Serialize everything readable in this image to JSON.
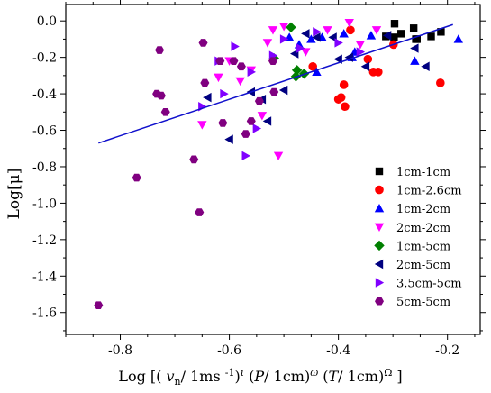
{
  "chart_data": {
    "type": "scatter",
    "title": "",
    "ylabel": "Log[μ]",
    "xlabel": {
      "parts": [
        "Log [( ",
        "v",
        "n",
        "/ 1ms ",
        "-1",
        ")",
        "ι",
        " (",
        "P",
        "/ 1cm)",
        "ω",
        " (",
        "T",
        "/ 1cm)",
        "Ω",
        " ]"
      ]
    },
    "xlim": [
      -0.9,
      -0.14
    ],
    "ylim": [
      -1.72,
      0.09
    ],
    "x_ticks": [
      -0.8,
      -0.6,
      -0.4,
      -0.2
    ],
    "x_tick_labels": [
      "-0.8",
      "-0.6",
      "-0.4",
      "-0.2"
    ],
    "y_ticks": [
      0.0,
      -0.2,
      -0.4,
      -0.6,
      -0.8,
      -1.0,
      -1.2,
      -1.4,
      -1.6
    ],
    "y_tick_labels": [
      "0.0",
      "-0.2",
      "-0.4",
      "-0.6",
      "-0.8",
      "-1.0",
      "-1.2",
      "-1.4",
      "-1.6"
    ],
    "grid": false,
    "legend_position": "bottom-right",
    "fit_line": {
      "x": [
        -0.84,
        -0.19
      ],
      "y": [
        -0.67,
        -0.02
      ],
      "color": "#1010cc"
    },
    "series": [
      {
        "name": "1cm-1cm",
        "marker": "square",
        "color": "#000000",
        "x": [
          -0.297,
          -0.285,
          -0.262,
          -0.298,
          -0.313,
          -0.258,
          -0.23,
          -0.212,
          -0.256
        ],
        "y": [
          -0.015,
          -0.07,
          -0.04,
          -0.09,
          -0.085,
          -0.1,
          -0.085,
          -0.06,
          -0.1
        ]
      },
      {
        "name": "1cm-2.6cm",
        "marker": "circle",
        "color": "#ff0000",
        "x": [
          -0.378,
          -0.346,
          -0.336,
          -0.327,
          -0.299,
          -0.447,
          -0.395,
          -0.39,
          -0.4,
          -0.388,
          -0.213
        ],
        "y": [
          -0.05,
          -0.21,
          -0.28,
          -0.28,
          -0.13,
          -0.25,
          -0.42,
          -0.35,
          -0.43,
          -0.47,
          -0.34
        ]
      },
      {
        "name": "1cm-2cm",
        "marker": "triangle-up",
        "color": "#0000ff",
        "x": [
          -0.49,
          -0.472,
          -0.45,
          -0.43,
          -0.39,
          -0.375,
          -0.34,
          -0.26,
          -0.18,
          -0.44,
          -0.37
        ],
        "y": [
          -0.09,
          -0.13,
          -0.1,
          -0.09,
          -0.07,
          -0.2,
          -0.08,
          -0.22,
          -0.1,
          -0.28,
          -0.17
        ]
      },
      {
        "name": "2cm-2cm",
        "marker": "triangle-down",
        "color": "#ff00ff",
        "x": [
          -0.6,
          -0.58,
          -0.56,
          -0.53,
          -0.5,
          -0.52,
          -0.46,
          -0.42,
          -0.38,
          -0.36,
          -0.33,
          -0.62,
          -0.65,
          -0.51,
          -0.54
        ],
        "y": [
          -0.22,
          -0.33,
          -0.27,
          -0.12,
          -0.03,
          -0.05,
          -0.17,
          -0.05,
          -0.01,
          -0.13,
          -0.05,
          -0.31,
          -0.57,
          -0.74,
          -0.52
        ]
      },
      {
        "name": "1cm-5cm",
        "marker": "diamond",
        "color": "#008000",
        "x": [
          -0.487,
          -0.518,
          -0.476,
          -0.478,
          -0.463
        ],
        "y": [
          -0.035,
          -0.205,
          -0.27,
          -0.305,
          -0.29
        ]
      },
      {
        "name": "2cm-5cm",
        "marker": "triangle-left",
        "color": "#000080",
        "x": [
          -0.64,
          -0.56,
          -0.5,
          -0.48,
          -0.46,
          -0.44,
          -0.4,
          -0.35,
          -0.31,
          -0.26,
          -0.24,
          -0.54,
          -0.53,
          -0.6,
          -0.41,
          -0.38
        ],
        "y": [
          -0.42,
          -0.39,
          -0.38,
          -0.18,
          -0.07,
          -0.09,
          -0.21,
          -0.25,
          -0.08,
          -0.15,
          -0.25,
          -0.43,
          -0.55,
          -0.65,
          -0.09,
          -0.2
        ]
      },
      {
        "name": "3.5cm-5cm",
        "marker": "triangle-right",
        "color": "#8000ff",
        "x": [
          -0.65,
          -0.62,
          -0.59,
          -0.56,
          -0.52,
          -0.5,
          -0.47,
          -0.44,
          -0.4,
          -0.36,
          -0.57,
          -0.61,
          -0.55
        ],
        "y": [
          -0.47,
          -0.22,
          -0.14,
          -0.28,
          -0.19,
          -0.1,
          -0.15,
          -0.06,
          -0.12,
          -0.17,
          -0.74,
          -0.4,
          -0.59
        ]
      },
      {
        "name": "5cm-5cm",
        "marker": "hexagon",
        "color": "#800080",
        "x": [
          -0.84,
          -0.77,
          -0.733,
          -0.725,
          -0.717,
          -0.665,
          -0.655,
          -0.645,
          -0.617,
          -0.592,
          -0.578,
          -0.57,
          -0.56,
          -0.545,
          -0.52,
          -0.518,
          -0.612,
          -0.648,
          -0.728
        ],
        "y": [
          -1.56,
          -0.86,
          -0.4,
          -0.41,
          -0.5,
          -0.76,
          -1.05,
          -0.34,
          -0.22,
          -0.22,
          -0.25,
          -0.62,
          -0.55,
          -0.44,
          -0.22,
          -0.39,
          -0.56,
          -0.12,
          -0.16
        ]
      }
    ]
  }
}
